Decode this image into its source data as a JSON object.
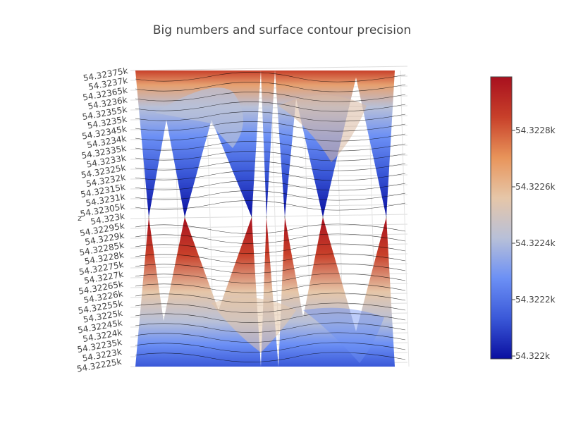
{
  "chart_data": {
    "type": "surface",
    "title": "Big numbers and surface contour precision",
    "z_axis": {
      "title": "z",
      "tick_labels": [
        "54.32375k",
        "54.3237k",
        "54.32365k",
        "54.3236k",
        "54.32355k",
        "54.3235k",
        "54.32345k",
        "54.3234k",
        "54.32335k",
        "54.3233k",
        "54.32325k",
        "54.3232k",
        "54.32315k",
        "54.3231k",
        "54.32305k",
        "54.323k",
        "54.32295k",
        "54.3229k",
        "54.32285k",
        "54.3228k",
        "54.32275k",
        "54.3227k",
        "54.32265k",
        "54.3226k",
        "54.32255k",
        "54.3225k",
        "54.32245k",
        "54.3224k",
        "54.32235k",
        "54.3223k",
        "54.32225k"
      ],
      "range": [
        54322.25,
        54323.75
      ]
    },
    "colorscale": [
      "#0a0fa0",
      "#3a58d8",
      "#6c90f5",
      "#b8c0d8",
      "#e6c6a8",
      "#e8945a",
      "#c8402a",
      "#a8101e"
    ],
    "colorbar": {
      "min": 54322.0,
      "max": 54323.0,
      "tick_labels": [
        "54.3228k",
        "54.3226k",
        "54.3224k",
        "54.3222k",
        "54.322k"
      ]
    },
    "contours": {
      "show": true,
      "color": "#000000"
    },
    "surface": {
      "description_of_shape": "periodic saddle surface; upper and lower halves meet in V-shaped cusps",
      "cusp_count": 7
    }
  }
}
